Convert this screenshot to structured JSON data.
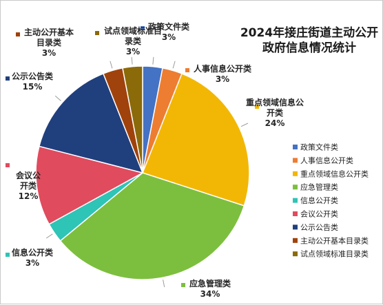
{
  "chart_data": {
    "type": "pie",
    "title_lines": [
      "2024年接庄街道主动公开",
      "政府信息情况统计"
    ],
    "categories": [
      "政策文件类",
      "人事信息公开类",
      "重点领域信息公开类",
      "应急管理类",
      "信息公开类",
      "会议公开类",
      "公示公告类",
      "主动公开基本目录类",
      "试点领域标准目录类"
    ],
    "values": [
      3,
      3,
      24,
      34,
      3,
      12,
      15,
      3,
      3
    ],
    "percent_labels": [
      "3%",
      "3%",
      "24%",
      "34%",
      "3%",
      "12%",
      "15%",
      "3%",
      "3%"
    ],
    "label_lines": [
      [
        "政策文件类"
      ],
      [
        "人事信息公开类"
      ],
      [
        "重点领域信息公",
        "开类"
      ],
      [
        "应急管理类"
      ],
      [
        "信息公开类"
      ],
      [
        "会议公",
        "开类"
      ],
      [
        "公示公告类"
      ],
      [
        "主动公开基本",
        "目录类"
      ],
      [
        "试点领域标准目",
        "录类"
      ]
    ],
    "colors": [
      "#4472C4",
      "#ED7D31",
      "#F2B705",
      "#7CBF3E",
      "#2EC4B6",
      "#E04B5E",
      "#203F7D",
      "#A0420B",
      "#8B6A0A"
    ],
    "legend": {
      "position": "right",
      "items": [
        "政策文件类",
        "人事信息公开类",
        "重点领域信息公开类",
        "应急管理类",
        "信息公开类",
        "会议公开类",
        "公示公告类",
        "主动公开基本目录类",
        "试点领域标准目录类"
      ]
    }
  }
}
